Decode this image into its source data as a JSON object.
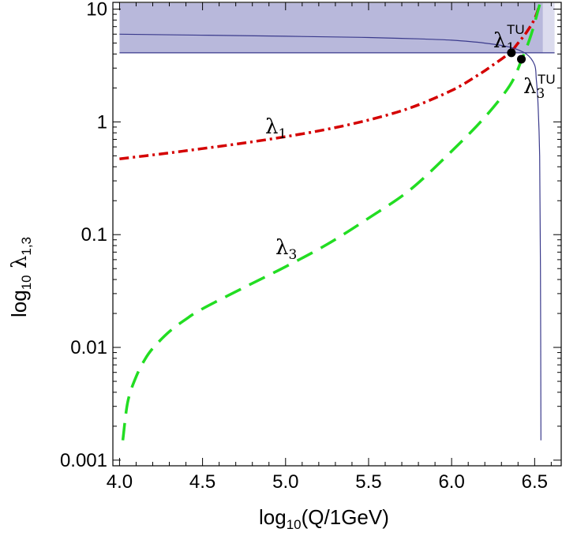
{
  "chart_data": {
    "type": "line",
    "xlabel": "log10(Q/1GeV)",
    "ylabel": "log10 λ1,3",
    "xlim": [
      3.96,
      6.66
    ],
    "ylim": [
      -3.05,
      1.06
    ],
    "y_scale": "log",
    "x_ticks": [
      "4.0",
      "4.5",
      "5.0",
      "5.5",
      "6.0",
      "6.5"
    ],
    "y_ticks": [
      "0.001",
      "0.01",
      "0.1",
      "1",
      "10"
    ],
    "grid": false,
    "series": [
      {
        "name": "λ1",
        "color": "#d40000",
        "style": "dash-dot",
        "x": [
          4.0,
          4.25,
          4.5,
          4.75,
          5.0,
          5.25,
          5.5,
          5.75,
          6.0,
          6.15,
          6.25,
          6.35,
          6.4,
          6.45,
          6.5,
          6.53
        ],
        "y": [
          0.47,
          0.52,
          0.58,
          0.65,
          0.74,
          0.86,
          1.04,
          1.33,
          1.9,
          2.55,
          3.2,
          4.1,
          5.0,
          6.2,
          8.2,
          11.0
        ]
      },
      {
        "name": "λ3",
        "color": "#22dd22",
        "style": "dashed",
        "x": [
          4.02,
          4.05,
          4.1,
          4.15,
          4.2,
          4.3,
          4.4,
          4.5,
          4.75,
          5.0,
          5.25,
          5.5,
          5.75,
          6.0,
          6.2,
          6.35,
          6.42,
          6.48,
          6.53
        ],
        "y": [
          0.0015,
          0.0033,
          0.0055,
          0.0077,
          0.0098,
          0.0138,
          0.0178,
          0.022,
          0.034,
          0.052,
          0.082,
          0.14,
          0.25,
          0.55,
          1.1,
          2.1,
          3.5,
          6.0,
          11.0
        ]
      },
      {
        "name": "",
        "color": "#3a3a8c",
        "style": "solid",
        "x": [
          4.0,
          5.0,
          5.5,
          5.8,
          6.0,
          6.2,
          6.35,
          6.45,
          6.5,
          6.51,
          6.52,
          6.53,
          6.535,
          6.538
        ],
        "y": [
          6.0,
          5.75,
          5.6,
          5.45,
          5.3,
          5.0,
          4.6,
          4.0,
          3.2,
          2.4,
          1.5,
          0.5,
          0.05,
          0.0015
        ]
      }
    ],
    "bands": [
      {
        "y_min": 4.1,
        "y_max": 11.4,
        "x_min": 4.0,
        "x_max": 6.55,
        "color": "#b8b8db"
      },
      {
        "y_min": 4.1,
        "y_max": 11.4,
        "x_min": 6.55,
        "x_max": 6.62,
        "color": "#dcdcee"
      }
    ],
    "points": [
      {
        "label": "λ1TU",
        "x": 6.36,
        "y": 4.1
      },
      {
        "label": "λ3TU",
        "x": 6.42,
        "y": 3.6
      }
    ],
    "annotations": {
      "lambda1": {
        "base": "λ",
        "sub": "1"
      },
      "lambda3": {
        "base": "λ",
        "sub": "3"
      },
      "lambda1TU": {
        "base": "λ",
        "sub": "1",
        "sup": "TU"
      },
      "lambda3TU": {
        "base": "λ",
        "sub": "3",
        "sup": "TU"
      }
    },
    "axis_titles": {
      "x": {
        "pre": "log",
        "sub": "10",
        "post": "(Q/1GeV)"
      },
      "y": {
        "pre": "log",
        "sub": "10",
        "post": " λ",
        "sub2": "1,3"
      }
    }
  }
}
